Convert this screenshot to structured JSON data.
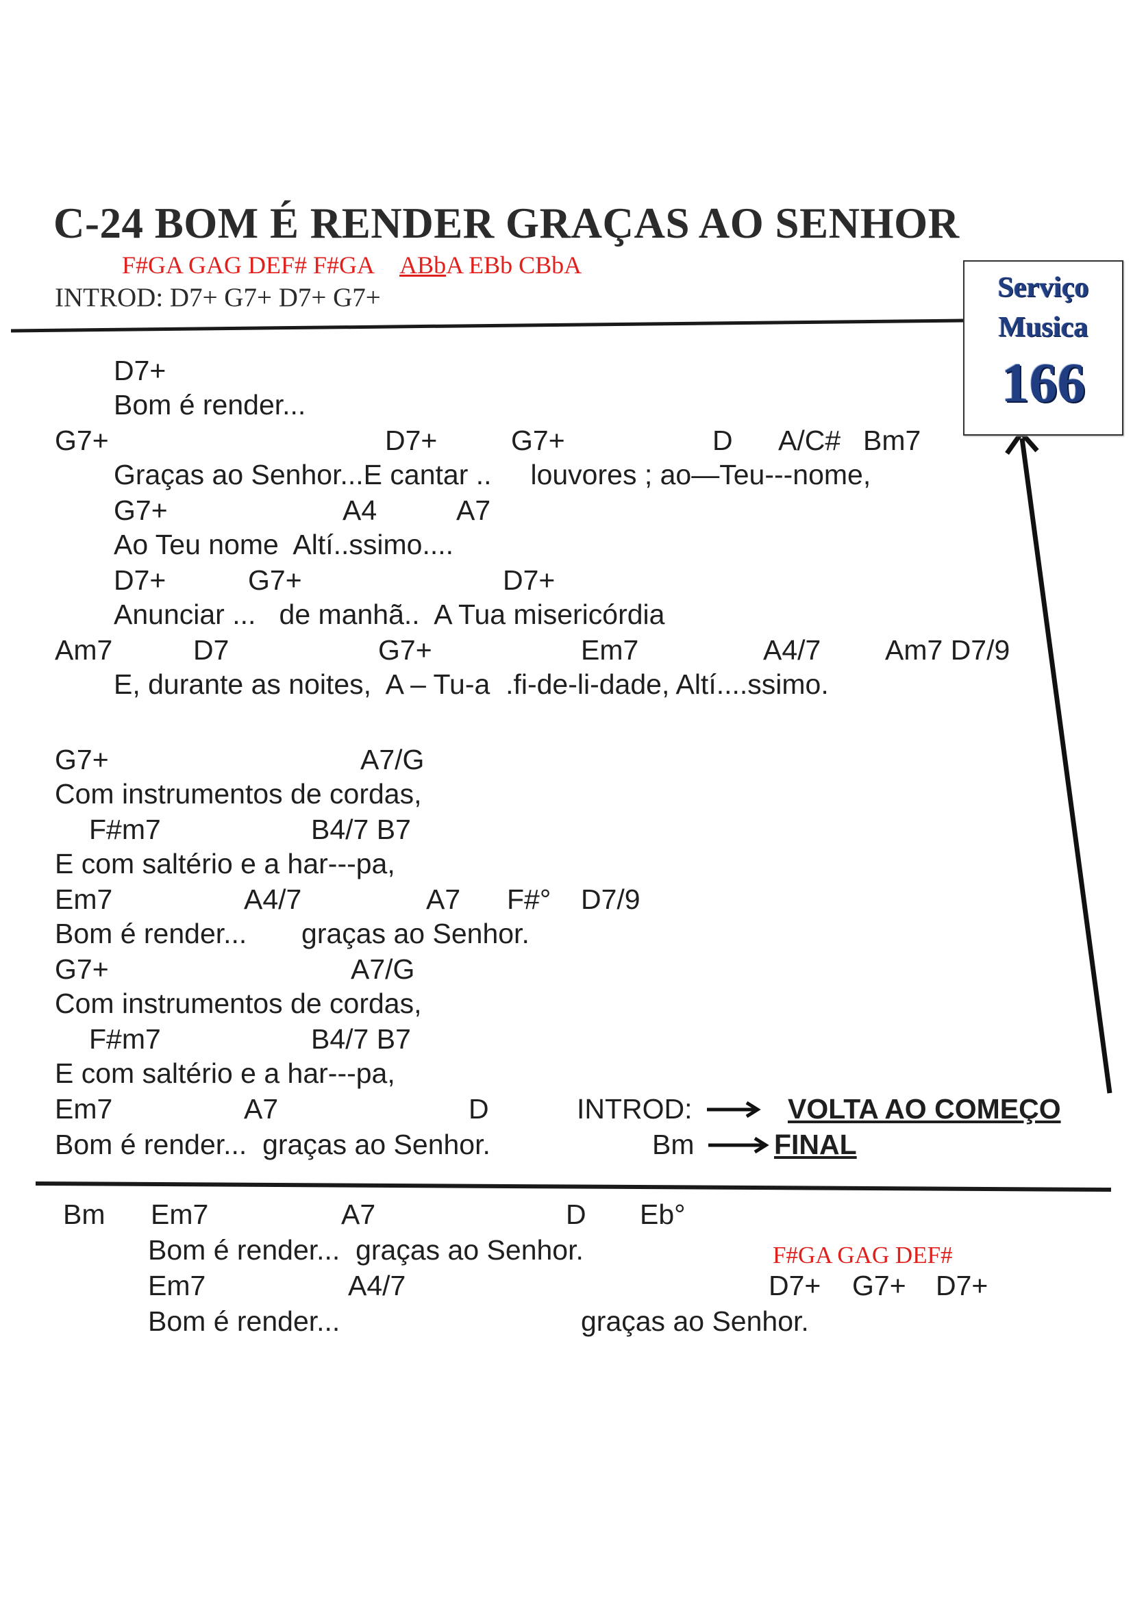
{
  "title": "C-24 BOM É RENDER GRAÇAS AO SENHOR",
  "notes_top": {
    "part1": "F#GA  GAG  DEF# F#GA",
    "underlined": "ABb",
    "part2": "A EBb   CBbA"
  },
  "intro_line": "INTROD: D7+   G7+  D7+  G7+",
  "badge": {
    "line1": "Serviço",
    "line2": "Musica",
    "number": "166"
  },
  "section1": {
    "c1": "D7+",
    "l1": "Bom é render...",
    "c2": [
      "G7+",
      "D7+",
      "G7+",
      "D",
      "A/C#",
      "Bm7"
    ],
    "l2": "Graças ao Senhor...E cantar ..     louvores ; ao—Teu---nome,",
    "c3": [
      "G7+",
      "A4",
      "A7"
    ],
    "l3": "Ao Teu nome  Altí..ssimo....",
    "c4": [
      "D7+",
      "G7+",
      "D7+"
    ],
    "l4": "Anunciar ...   de manhã..  A Tua misericórdia",
    "c5": [
      "Am7",
      "D7",
      "G7+",
      "Em7",
      "A4/7",
      "Am7 D7/9"
    ],
    "l5": "E, durante as noites,  A – Tu-a  .fi-de-li-dade, Altí....ssimo."
  },
  "section2": {
    "c1": [
      "G7+",
      "A7/G"
    ],
    "l1": "Com instrumentos de cordas,",
    "c2": [
      "F#m7",
      "B4/7 B7"
    ],
    "l2": "E com saltério e a har---pa,",
    "c3": [
      "Em7",
      "A4/7",
      "A7",
      "F#°",
      "D7/9"
    ],
    "l3": "Bom é render...       graças ao Senhor.",
    "c4": [
      "G7+",
      "A7/G"
    ],
    "l4": "Com instrumentos de cordas,",
    "c5": [
      "F#m7",
      "B4/7 B7"
    ],
    "l5": "E com saltério e a har---pa,",
    "c6": [
      "Em7",
      "A7",
      "D"
    ],
    "intro_label": "INTROD:",
    "volta": "VOLTA AO COMEÇO",
    "l6": "Bom é render...  graças ao Senhor.",
    "bm": "Bm",
    "final": "FINAL"
  },
  "section3": {
    "c1": [
      "Bm",
      "Em7",
      "A7",
      "D",
      "Eb°"
    ],
    "l1": "Bom é render...  graças ao Senhor.",
    "notes": "F#GA  GAG  DEF#",
    "c2": [
      "Em7",
      "A4/7",
      "D7+",
      "G7+",
      "D7+"
    ],
    "l2": "Bom é render...",
    "l2b": "graças ao Senhor."
  }
}
